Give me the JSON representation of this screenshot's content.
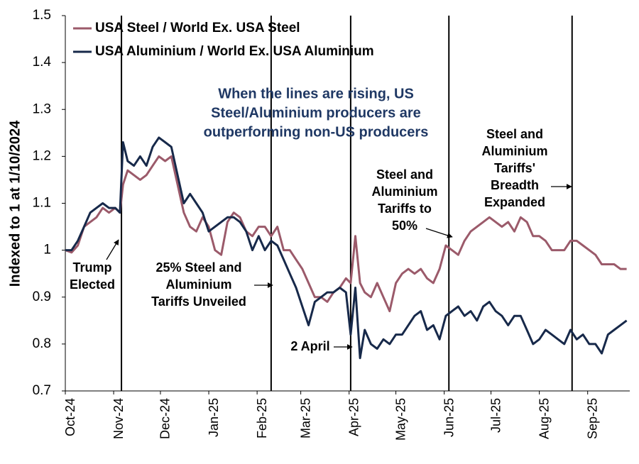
{
  "chart_data": {
    "type": "line",
    "y_label": "Indexed to 1 at 1/10/2024",
    "xlim": [
      0,
      362
    ],
    "xticks": [
      {
        "value": 0,
        "label": "Oct-24"
      },
      {
        "value": 31,
        "label": "Nov-24"
      },
      {
        "value": 61,
        "label": "Dec-24"
      },
      {
        "value": 92,
        "label": "Jan-25"
      },
      {
        "value": 123,
        "label": "Feb-25"
      },
      {
        "value": 151,
        "label": "Mar-25"
      },
      {
        "value": 182,
        "label": "Apr-25"
      },
      {
        "value": 212,
        "label": "May-25"
      },
      {
        "value": 243,
        "label": "Jun-25"
      },
      {
        "value": 273,
        "label": "Jul-25"
      },
      {
        "value": 304,
        "label": "Aug-25"
      },
      {
        "value": 335,
        "label": "Sep-25"
      }
    ],
    "ylim": [
      0.7,
      1.5
    ],
    "yticks": [
      0.7,
      0.8,
      0.9,
      1,
      1.1,
      1.2,
      1.3,
      1.4,
      1.5
    ],
    "events": [
      36,
      132,
      183,
      246,
      325
    ],
    "annotations": [
      [
        "Trump",
        "Elected"
      ],
      [
        "25% Steel and",
        "Aluminium",
        "Tariffs Unveiled"
      ],
      [
        "2 April"
      ],
      [
        "Steel and",
        "Aluminium",
        "Tariffs to",
        "50%"
      ],
      [
        "Steel and",
        "Aluminium",
        "Tariffs'",
        "Breadth",
        "Expanded"
      ]
    ],
    "note": [
      "When the lines are rising, US",
      "Steel/Aluminium producers are",
      "outperforming non-US producers"
    ],
    "x": [
      0,
      4,
      8,
      12,
      16,
      20,
      24,
      28,
      32,
      35,
      37,
      40,
      44,
      48,
      52,
      56,
      60,
      64,
      68,
      72,
      76,
      80,
      84,
      88,
      92,
      96,
      100,
      104,
      108,
      112,
      116,
      120,
      124,
      128,
      132,
      136,
      140,
      144,
      148,
      152,
      156,
      160,
      164,
      168,
      172,
      176,
      180,
      183,
      186,
      189,
      192,
      196,
      200,
      204,
      208,
      212,
      216,
      220,
      224,
      228,
      232,
      236,
      240,
      244,
      248,
      252,
      256,
      260,
      264,
      268,
      272,
      276,
      280,
      284,
      288,
      292,
      296,
      300,
      304,
      308,
      312,
      316,
      320,
      324,
      328,
      332,
      336,
      340,
      344,
      348,
      352,
      356,
      360
    ],
    "series": [
      {
        "name": "USA Steel / World Ex. USA Steel",
        "color": "#9b5a6a",
        "values": [
          1.0,
          0.995,
          1.01,
          1.05,
          1.06,
          1.07,
          1.09,
          1.08,
          1.09,
          1.08,
          1.14,
          1.17,
          1.16,
          1.15,
          1.16,
          1.18,
          1.2,
          1.19,
          1.2,
          1.14,
          1.08,
          1.05,
          1.04,
          1.07,
          1.05,
          1.0,
          0.99,
          1.06,
          1.08,
          1.07,
          1.04,
          1.03,
          1.05,
          1.05,
          1.03,
          1.05,
          1.0,
          1.0,
          0.98,
          0.96,
          0.93,
          0.9,
          0.9,
          0.89,
          0.91,
          0.92,
          0.94,
          0.93,
          1.03,
          0.93,
          0.91,
          0.9,
          0.93,
          0.9,
          0.87,
          0.93,
          0.95,
          0.96,
          0.95,
          0.96,
          0.94,
          0.93,
          0.96,
          1.01,
          1.0,
          0.99,
          1.02,
          1.04,
          1.05,
          1.06,
          1.07,
          1.06,
          1.05,
          1.06,
          1.04,
          1.07,
          1.06,
          1.03,
          1.03,
          1.02,
          1.0,
          1.0,
          1.0,
          1.02,
          1.02,
          1.01,
          1.0,
          0.99,
          0.97,
          0.97,
          0.97,
          0.96,
          0.96
        ]
      },
      {
        "name": "USA Aluminium / World Ex. USA Aluminium",
        "color": "#17294a",
        "values": [
          1.0,
          1.0,
          1.02,
          1.05,
          1.08,
          1.09,
          1.1,
          1.09,
          1.09,
          1.08,
          1.23,
          1.19,
          1.18,
          1.2,
          1.18,
          1.22,
          1.24,
          1.23,
          1.22,
          1.16,
          1.1,
          1.12,
          1.1,
          1.08,
          1.04,
          1.05,
          1.06,
          1.07,
          1.07,
          1.06,
          1.04,
          1.0,
          1.03,
          1.0,
          1.02,
          1.01,
          0.98,
          0.95,
          0.92,
          0.88,
          0.84,
          0.89,
          0.9,
          0.91,
          0.91,
          0.92,
          0.91,
          0.82,
          0.92,
          0.77,
          0.83,
          0.8,
          0.79,
          0.81,
          0.8,
          0.82,
          0.82,
          0.84,
          0.86,
          0.87,
          0.83,
          0.84,
          0.81,
          0.86,
          0.87,
          0.88,
          0.86,
          0.87,
          0.85,
          0.88,
          0.89,
          0.87,
          0.86,
          0.84,
          0.86,
          0.86,
          0.83,
          0.8,
          0.81,
          0.83,
          0.82,
          0.81,
          0.8,
          0.83,
          0.81,
          0.82,
          0.8,
          0.8,
          0.78,
          0.82,
          0.83,
          0.84,
          0.85
        ]
      }
    ]
  }
}
